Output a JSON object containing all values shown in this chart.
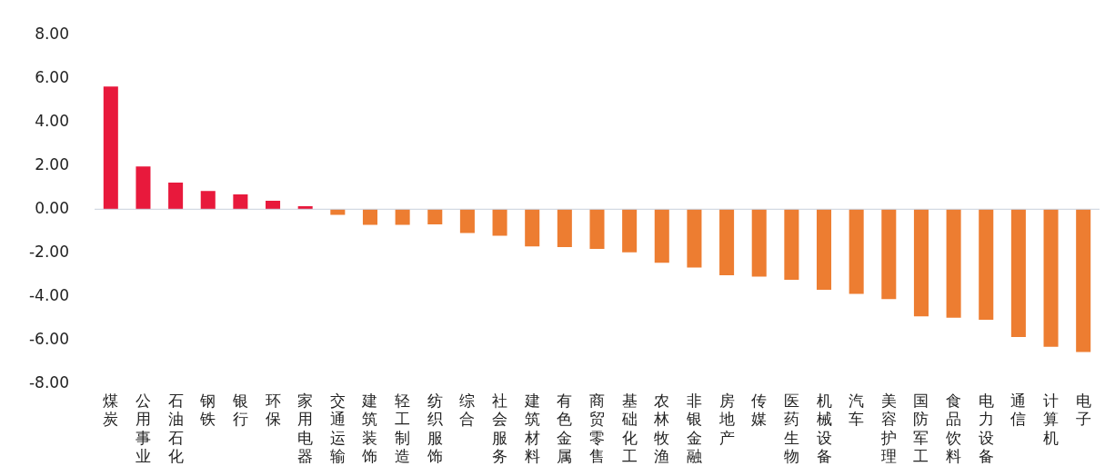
{
  "chart_data": {
    "type": "bar",
    "categories": [
      "煤炭",
      "公用事业",
      "石油石化",
      "钢铁",
      "银行",
      "环保",
      "家用电器",
      "交通运输",
      "建筑装饰",
      "轻工制造",
      "纺织服饰",
      "综合",
      "社会服务",
      "建筑材料",
      "有色金属",
      "商贸零售",
      "基础化工",
      "农林牧渔",
      "非银金融",
      "房地产",
      "传媒",
      "医药生物",
      "机械设备",
      "汽车",
      "美容护理",
      "国防军工",
      "食品饮料",
      "电力设备",
      "通信",
      "计算机",
      "电子"
    ],
    "values": [
      5.62,
      1.96,
      1.22,
      0.84,
      0.68,
      0.39,
      0.14,
      -0.26,
      -0.72,
      -0.72,
      -0.7,
      -1.09,
      -1.22,
      -1.71,
      -1.74,
      -1.82,
      -1.98,
      -2.45,
      -2.67,
      -3.03,
      -3.09,
      -3.24,
      -3.69,
      -3.88,
      -4.12,
      -4.91,
      -4.97,
      -5.07,
      -5.86,
      -6.31,
      -6.55
    ],
    "colors": [
      "#e8193c",
      "#e8193c",
      "#e8193c",
      "#e8193c",
      "#e8193c",
      "#e8193c",
      "#e8193c",
      "#ed7d31",
      "#ed7d31",
      "#ed7d31",
      "#ed7d31",
      "#ed7d31",
      "#ed7d31",
      "#ed7d31",
      "#ed7d31",
      "#ed7d31",
      "#ed7d31",
      "#ed7d31",
      "#ed7d31",
      "#ed7d31",
      "#ed7d31",
      "#ed7d31",
      "#ed7d31",
      "#ed7d31",
      "#ed7d31",
      "#ed7d31",
      "#ed7d31",
      "#ed7d31",
      "#ed7d31",
      "#ed7d31",
      "#ed7d31"
    ],
    "ylim": [
      -8,
      8
    ],
    "yticks": [
      {
        "value": -8,
        "label": "-8.00"
      },
      {
        "value": -6,
        "label": "-6.00"
      },
      {
        "value": -4,
        "label": "-4.00"
      },
      {
        "value": -2,
        "label": "-2.00"
      },
      {
        "value": 0,
        "label": "0.00"
      },
      {
        "value": 2,
        "label": "2.00"
      },
      {
        "value": 4,
        "label": "4.00"
      },
      {
        "value": 6,
        "label": "6.00"
      },
      {
        "value": 8,
        "label": "8.00"
      }
    ],
    "ref_lines": [
      {
        "axis": "y",
        "value": 0,
        "color": "#c8d0dc"
      }
    ],
    "grid": false,
    "legend": false
  }
}
